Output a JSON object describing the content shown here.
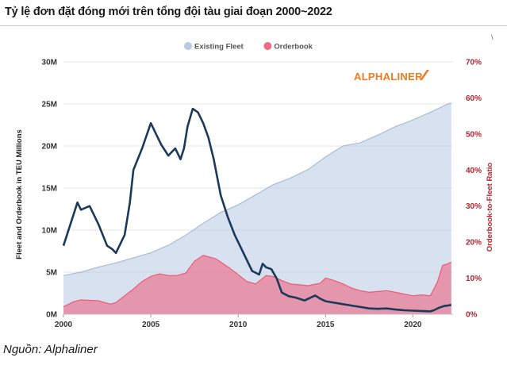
{
  "page": {
    "title": "Tỷ lệ đơn đặt đóng mới trên tổng đội tàu giai đoạn 2000~2022",
    "source": "Nguồn: Alphaliner",
    "corner_mark": "\\"
  },
  "chart_data": {
    "type": "area",
    "logo": "ALPHALINER",
    "legend_position": "top-center",
    "grid": true,
    "xlabel": "",
    "ylabel_left": "Fleet and Orderbook in TEU Millions",
    "ylabel_right": "Orderbook-to-Fleet Ratio",
    "x_ticks": [
      2000,
      2005,
      2010,
      2015,
      2020
    ],
    "xlim": [
      2000,
      2022.3
    ],
    "y_left_ticks": [
      "0M",
      "5M",
      "10M",
      "15M",
      "20M",
      "25M",
      "30M"
    ],
    "y_left_lim": [
      0,
      30
    ],
    "y_right_ticks": [
      "0%",
      "10%",
      "20%",
      "30%",
      "40%",
      "50%",
      "60%",
      "70%"
    ],
    "y_right_lim": [
      0,
      70
    ],
    "colors": {
      "fleet": "#b6c9e1",
      "orderbook": "#ee5a77",
      "ratio": "#1b3a5a",
      "left_axis": "#333333",
      "right_axis": "#b2242f",
      "logo": "#f07a20"
    },
    "series": [
      {
        "name": "Existing Fleet",
        "kind": "area",
        "axis": "left",
        "points": [
          [
            2000,
            4.6
          ],
          [
            2001,
            5.0
          ],
          [
            2002,
            5.6
          ],
          [
            2003,
            6.1
          ],
          [
            2004,
            6.7
          ],
          [
            2005,
            7.3
          ],
          [
            2006,
            8.2
          ],
          [
            2007,
            9.4
          ],
          [
            2008,
            10.8
          ],
          [
            2009,
            12.1
          ],
          [
            2010,
            13.0
          ],
          [
            2011,
            14.2
          ],
          [
            2012,
            15.4
          ],
          [
            2013,
            16.2
          ],
          [
            2014,
            17.2
          ],
          [
            2015,
            18.7
          ],
          [
            2016,
            20.0
          ],
          [
            2017,
            20.4
          ],
          [
            2018,
            21.3
          ],
          [
            2019,
            22.3
          ],
          [
            2020,
            23.1
          ],
          [
            2021,
            24.0
          ],
          [
            2022,
            25.0
          ],
          [
            2022.2,
            25.1
          ]
        ]
      },
      {
        "name": "Orderbook",
        "kind": "area",
        "axis": "left",
        "points": [
          [
            2000,
            0.9
          ],
          [
            2000.6,
            1.5
          ],
          [
            2001,
            1.7
          ],
          [
            2002,
            1.6
          ],
          [
            2002.7,
            1.2
          ],
          [
            2003,
            1.4
          ],
          [
            2003.5,
            2.2
          ],
          [
            2004,
            3.0
          ],
          [
            2004.5,
            3.9
          ],
          [
            2005,
            4.5
          ],
          [
            2005.5,
            4.8
          ],
          [
            2006,
            4.6
          ],
          [
            2006.5,
            4.6
          ],
          [
            2007,
            4.9
          ],
          [
            2007.5,
            6.3
          ],
          [
            2008,
            7.0
          ],
          [
            2008.7,
            6.6
          ],
          [
            2009,
            6.2
          ],
          [
            2009.5,
            5.5
          ],
          [
            2010,
            4.7
          ],
          [
            2010.5,
            3.9
          ],
          [
            2011,
            3.6
          ],
          [
            2011.6,
            4.6
          ],
          [
            2012,
            4.5
          ],
          [
            2012.5,
            4.0
          ],
          [
            2013,
            3.6
          ],
          [
            2013.5,
            3.5
          ],
          [
            2014,
            3.4
          ],
          [
            2014.7,
            3.7
          ],
          [
            2015,
            4.3
          ],
          [
            2015.5,
            4.0
          ],
          [
            2016,
            3.6
          ],
          [
            2016.5,
            3.1
          ],
          [
            2017,
            2.8
          ],
          [
            2017.5,
            2.6
          ],
          [
            2018,
            2.7
          ],
          [
            2018.5,
            2.8
          ],
          [
            2019,
            2.6
          ],
          [
            2019.5,
            2.4
          ],
          [
            2020,
            2.2
          ],
          [
            2020.5,
            2.3
          ],
          [
            2021,
            2.2
          ],
          [
            2021.4,
            3.8
          ],
          [
            2021.7,
            5.8
          ],
          [
            2022,
            6.0
          ],
          [
            2022.2,
            6.2
          ]
        ]
      },
      {
        "name": "Orderbook-to-Fleet Ratio",
        "kind": "line",
        "axis": "right",
        "points": [
          [
            2000,
            19
          ],
          [
            2000.6,
            28
          ],
          [
            2000.8,
            31
          ],
          [
            2001,
            29
          ],
          [
            2001.5,
            30
          ],
          [
            2002,
            25
          ],
          [
            2002.5,
            19
          ],
          [
            2002.8,
            18
          ],
          [
            2003,
            17
          ],
          [
            2003.5,
            22
          ],
          [
            2003.8,
            31
          ],
          [
            2004,
            40
          ],
          [
            2004.5,
            46
          ],
          [
            2005,
            53
          ],
          [
            2005.3,
            50
          ],
          [
            2005.6,
            47
          ],
          [
            2006,
            44
          ],
          [
            2006.4,
            46
          ],
          [
            2006.7,
            43
          ],
          [
            2006.9,
            46
          ],
          [
            2007.1,
            52
          ],
          [
            2007.4,
            57
          ],
          [
            2007.7,
            56
          ],
          [
            2008,
            53
          ],
          [
            2008.3,
            49
          ],
          [
            2008.6,
            43
          ],
          [
            2009,
            33
          ],
          [
            2009.4,
            27
          ],
          [
            2009.8,
            22
          ],
          [
            2010.2,
            18
          ],
          [
            2010.5,
            15
          ],
          [
            2010.8,
            12
          ],
          [
            2011.2,
            11
          ],
          [
            2011.4,
            14
          ],
          [
            2011.6,
            13
          ],
          [
            2011.9,
            12.5
          ],
          [
            2012.2,
            10
          ],
          [
            2012.5,
            6
          ],
          [
            2012.9,
            5
          ],
          [
            2013.3,
            4.6
          ],
          [
            2013.8,
            3.8
          ],
          [
            2014.1,
            4.5
          ],
          [
            2014.4,
            5.2
          ],
          [
            2014.7,
            4.3
          ],
          [
            2015,
            3.6
          ],
          [
            2015.5,
            3.2
          ],
          [
            2016,
            2.8
          ],
          [
            2016.5,
            2.4
          ],
          [
            2017,
            2.0
          ],
          [
            2017.5,
            1.6
          ],
          [
            2018,
            1.5
          ],
          [
            2018.5,
            1.6
          ],
          [
            2019,
            1.3
          ],
          [
            2019.5,
            1.1
          ],
          [
            2020,
            1.0
          ],
          [
            2020.5,
            0.9
          ],
          [
            2021,
            0.8
          ],
          [
            2021.2,
            1.1
          ],
          [
            2021.5,
            1.8
          ],
          [
            2021.8,
            2.3
          ],
          [
            2022,
            2.4
          ],
          [
            2022.2,
            2.6
          ]
        ]
      }
    ]
  }
}
